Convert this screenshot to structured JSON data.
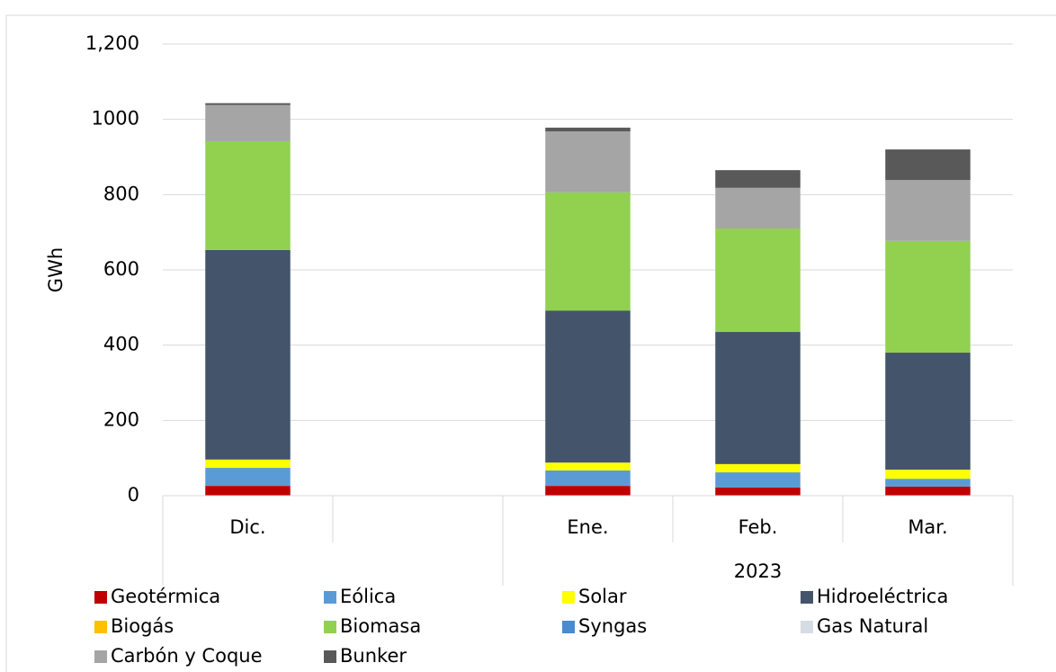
{
  "chart_data": {
    "type": "stacked_bar",
    "y_label": "GWh",
    "categories": [
      "Dic.",
      null,
      "Ene.",
      "Feb.",
      "Mar."
    ],
    "groups": [
      {
        "label": "2023",
        "from": 2,
        "to": 4
      }
    ],
    "series": [
      {
        "name": "Geotérmica",
        "color": "#c00000",
        "values": [
          26,
          null,
          26,
          22,
          24
        ]
      },
      {
        "name": "Eólica",
        "color": "#5b9bd5",
        "values": [
          48,
          null,
          41,
          40,
          21
        ]
      },
      {
        "name": "Solar",
        "color": "#ffff00",
        "values": [
          22,
          null,
          21,
          22,
          24
        ]
      },
      {
        "name": "Hidroeléctrica",
        "color": "#44546a",
        "values": [
          557,
          null,
          404,
          351,
          311
        ]
      },
      {
        "name": "Biogás",
        "color": "#ffc000",
        "values": [
          0,
          null,
          0,
          0,
          0
        ]
      },
      {
        "name": "Biomasa",
        "color": "#92d050",
        "values": [
          289,
          null,
          314,
          275,
          297
        ]
      },
      {
        "name": "Syngas",
        "color": "#4a8ad0",
        "values": [
          0,
          null,
          0,
          0,
          0
        ]
      },
      {
        "name": "Gas Natural",
        "color": "#d6dce4",
        "values": [
          0,
          null,
          0,
          0,
          0
        ]
      },
      {
        "name": "Carbón y Coque",
        "color": "#a5a5a5",
        "values": [
          96,
          null,
          162,
          108,
          162
        ]
      },
      {
        "name": "Bunker",
        "color": "#595959",
        "values": [
          5,
          null,
          10,
          47,
          81
        ]
      }
    ],
    "ylim": [
      0,
      1200
    ],
    "yticks": [
      0,
      200,
      400,
      600,
      800,
      1000,
      {
        "value": 1200,
        "label": "1,200"
      }
    ],
    "grid": true
  }
}
